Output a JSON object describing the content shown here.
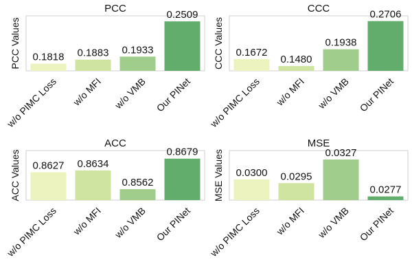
{
  "colors": [
    "#ecf3bf",
    "#cfe4a1",
    "#a0cd8c",
    "#62ad6c"
  ],
  "charts": [
    {
      "type": "bar",
      "title": "PCC",
      "ylabel": "PCC Values",
      "categories": [
        "w/o PIMC Loss",
        "w/o MFI",
        "w/o VMB",
        "Our PINet"
      ],
      "values": [
        0.1818,
        0.1883,
        0.1933,
        0.2509
      ],
      "value_labels": [
        "0.1818",
        "0.1883",
        "0.1933",
        "0.2509"
      ],
      "ylim": [
        0.17,
        0.26
      ]
    },
    {
      "type": "bar",
      "title": "CCC",
      "ylabel": "CCC Values",
      "categories": [
        "w/o PIMC Loss",
        "w/o MFI",
        "w/o VMB",
        "Our PINet"
      ],
      "values": [
        0.1672,
        0.148,
        0.1938,
        0.2706
      ],
      "value_labels": [
        "0.1672",
        "0.1480",
        "0.1938",
        "0.2706"
      ],
      "ylim": [
        0.135,
        0.285
      ]
    },
    {
      "type": "bar",
      "title": "ACC",
      "ylabel": "ACC Values",
      "categories": [
        "w/o PIMC Loss",
        "w/o MFI",
        "w/o VMB",
        "Our PINet"
      ],
      "values": [
        0.8627,
        0.8634,
        0.8562,
        0.8679
      ],
      "value_labels": [
        "0.8627",
        "0.8634",
        "0.8562",
        "0.8679"
      ],
      "ylim": [
        0.852,
        0.871
      ]
    },
    {
      "type": "bar",
      "title": "MSE",
      "ylabel": "MSE Values",
      "categories": [
        "w/o PIMC Loss",
        "w/o MFI",
        "w/o VMB",
        "Our PINet"
      ],
      "values": [
        0.03,
        0.0295,
        0.0327,
        0.0277
      ],
      "value_labels": [
        "0.0300",
        "0.0295",
        "0.0327",
        "0.0277"
      ],
      "ylim": [
        0.0272,
        0.0339
      ]
    }
  ]
}
